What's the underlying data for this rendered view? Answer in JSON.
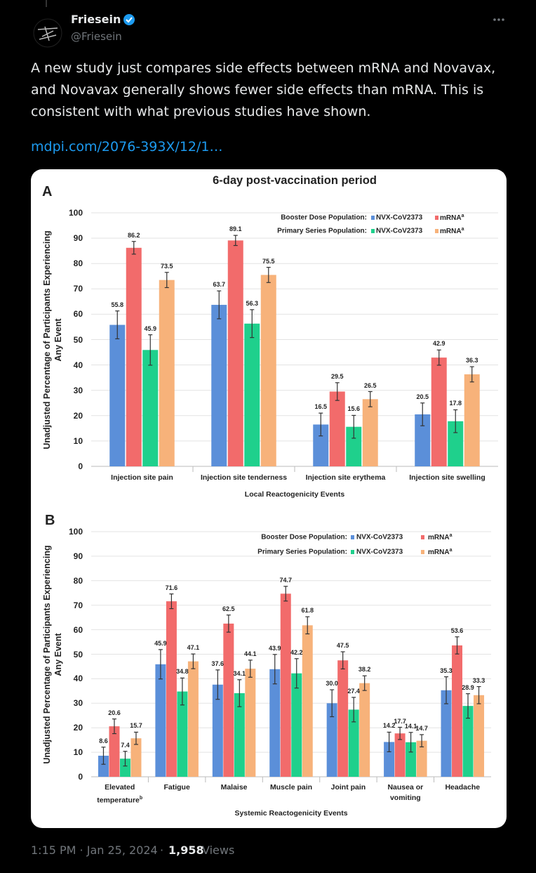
{
  "author": {
    "name": "Friesein",
    "handle": "@Friesein"
  },
  "post": {
    "text": "A new study just compares side effects between mRNA and Novavax, and Novavax generally shows fewer side effects than mRNA. This is consistent with what previous studies have shown.",
    "link": "mdpi.com/2076-393X/12/1…"
  },
  "footer": {
    "time": "1:15 PM · Jan 25, 2024",
    "separator": "·",
    "views": "1,958",
    "views_label": "Views"
  },
  "chart_data": [
    {
      "type": "bar",
      "panel": "A",
      "title": "6-day post-vaccination period",
      "ylabel": "Unadjusted Percentage of Participants Experiencing Any Event",
      "xlabel": "Local Reactogenicity Events",
      "categories": [
        "Injection site pain",
        "Injection site tenderness",
        "Injection site erythema",
        "Injection site swelling"
      ],
      "legend_rows": [
        "Booster Dose Population:",
        "Primary Series Population:"
      ],
      "series": [
        {
          "name": "NVX-CoV2373",
          "color": "#5b8fd9",
          "values": [
            55.8,
            63.7,
            16.5,
            20.5
          ],
          "value_labels": [
            "55.8",
            "63.7",
            "16.5",
            "20.5"
          ],
          "errors": [
            5.5,
            5.5,
            4.5,
            4.5
          ]
        },
        {
          "name": "mRNA",
          "note": "a",
          "color": "#f26b6b",
          "values": [
            86.2,
            89.1,
            29.5,
            42.9
          ],
          "value_labels": [
            "86.2",
            "89.1",
            "29.5",
            "42.9"
          ],
          "errors": [
            2.5,
            2,
            3.5,
            3
          ]
        },
        {
          "name": "NVX-CoV2373",
          "color": "#1fd08c",
          "values": [
            45.9,
            56.3,
            15.6,
            17.8
          ],
          "value_labels": [
            "45.9",
            "56.3",
            "15.6",
            "17.8"
          ],
          "errors": [
            6,
            5.5,
            4.5,
            4.5
          ]
        },
        {
          "name": "mRNA",
          "note": "a",
          "color": "#f7b27a",
          "values": [
            73.5,
            75.5,
            26.5,
            36.3
          ],
          "value_labels": [
            "73.5",
            "75.5",
            "26.5",
            "36.3"
          ],
          "errors": [
            3,
            3,
            3,
            3
          ]
        }
      ],
      "ylim": [
        0,
        100
      ],
      "yticks": [
        0,
        10,
        20,
        30,
        40,
        50,
        60,
        70,
        80,
        90,
        100
      ],
      "grid": true
    },
    {
      "type": "bar",
      "panel": "B",
      "ylabel": "Unadjusted Percentage of Participants Experiencing Any Event",
      "xlabel": "Systemic Reactogenicity Events",
      "categories": [
        {
          "label": "Elevated temperature",
          "note": "b"
        },
        "Fatigue",
        "Malaise",
        "Muscle pain",
        "Joint pain",
        "Nausea or vomiting",
        "Headache"
      ],
      "legend_rows": [
        "Booster Dose Population:",
        "Primary Series Population:"
      ],
      "series": [
        {
          "name": "NVX-CoV2373",
          "color": "#5b8fd9",
          "values": [
            8.6,
            45.9,
            37.6,
            43.9,
            30.0,
            14.2,
            35.3
          ],
          "value_labels": [
            "8.6",
            "45.9",
            "37.6",
            "43.9",
            "30.0",
            "14.2",
            "35.3"
          ],
          "errors": [
            3.5,
            6,
            6,
            6,
            5.5,
            4,
            5.5
          ]
        },
        {
          "name": "mRNA",
          "note": "a",
          "color": "#f26b6b",
          "values": [
            20.6,
            71.6,
            62.5,
            74.7,
            47.5,
            17.7,
            53.6
          ],
          "value_labels": [
            "20.6",
            "71.6",
            "62.5",
            "74.7",
            "47.5",
            "17.7",
            "53.6"
          ],
          "errors": [
            3,
            3,
            3.5,
            3,
            3.5,
            2.5,
            3.5
          ]
        },
        {
          "name": "NVX-CoV2373",
          "color": "#1fd08c",
          "values": [
            7.4,
            34.8,
            34.1,
            42.2,
            27.4,
            14.1,
            28.9
          ],
          "value_labels": [
            "7.4",
            "34.8",
            "34.1",
            "42.2",
            "27.4",
            "14.1",
            "28.9"
          ],
          "errors": [
            3,
            5.5,
            5.5,
            6,
            5,
            4,
            5
          ]
        },
        {
          "name": "mRNA",
          "note": "a",
          "color": "#f7b27a",
          "values": [
            15.7,
            47.1,
            44.1,
            61.8,
            38.2,
            14.7,
            33.3
          ],
          "value_labels": [
            "15.7",
            "47.1",
            "44.1",
            "61.8",
            "38.2",
            "14.7",
            "33.3"
          ],
          "errors": [
            2.5,
            3,
            3.5,
            3.5,
            3,
            2.5,
            3.5
          ]
        }
      ],
      "ylim": [
        0,
        100
      ],
      "yticks": [
        0,
        10,
        20,
        30,
        40,
        50,
        60,
        70,
        80,
        90,
        100
      ],
      "grid": true
    }
  ]
}
